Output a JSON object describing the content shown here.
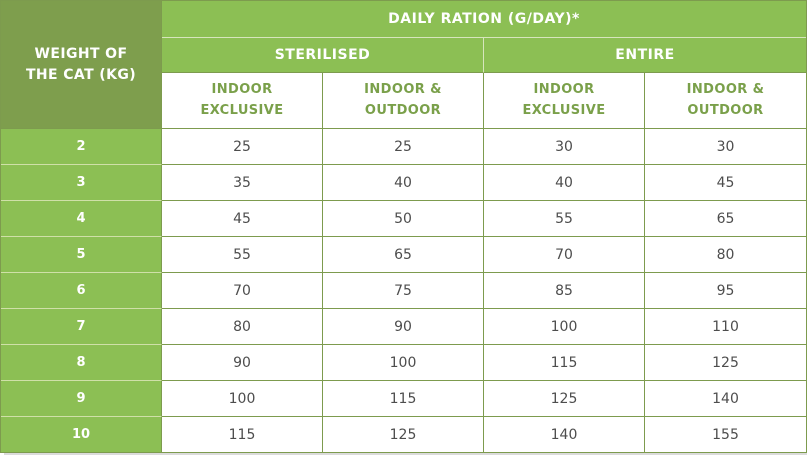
{
  "title": "DAILY RATION (G/DAY)*",
  "corner": [
    "WEIGHT OF",
    "THE CAT (KG)"
  ],
  "groups": [
    "STERILISED",
    "ENTIRE"
  ],
  "sub_headers": [
    [
      "INDOOR",
      "EXCLUSIVE"
    ],
    [
      "INDOOR &",
      "OUTDOOR"
    ],
    [
      "INDOOR",
      "EXCLUSIVE"
    ],
    [
      "INDOOR &",
      "OUTDOOR"
    ]
  ],
  "chart_data": {
    "type": "table",
    "title": "DAILY RATION (G/DAY)*",
    "row_header": "WEIGHT OF THE CAT (KG)",
    "column_groups": [
      "STERILISED",
      "ENTIRE"
    ],
    "columns": [
      "STERILISED - INDOOR EXCLUSIVE",
      "STERILISED - INDOOR & OUTDOOR",
      "ENTIRE - INDOOR EXCLUSIVE",
      "ENTIRE - INDOOR & OUTDOOR"
    ],
    "rows": [
      {
        "weight": 2,
        "values": [
          25,
          25,
          30,
          30
        ]
      },
      {
        "weight": 3,
        "values": [
          35,
          40,
          40,
          45
        ]
      },
      {
        "weight": 4,
        "values": [
          45,
          50,
          55,
          65
        ]
      },
      {
        "weight": 5,
        "values": [
          55,
          65,
          70,
          80
        ]
      },
      {
        "weight": 6,
        "values": [
          70,
          75,
          85,
          95
        ]
      },
      {
        "weight": 7,
        "values": [
          80,
          90,
          100,
          110
        ]
      },
      {
        "weight": 8,
        "values": [
          90,
          100,
          115,
          125
        ]
      },
      {
        "weight": 9,
        "values": [
          100,
          115,
          125,
          140
        ]
      },
      {
        "weight": 10,
        "values": [
          115,
          125,
          140,
          155
        ]
      }
    ]
  },
  "colors": {
    "header_green": "#8cbf54",
    "corner_green": "#7e9e4d",
    "border_olive": "#7d9b4e",
    "light_border": "#d6e5bd",
    "subheader_text": "#7aa04a",
    "data_text": "#4d4d4d",
    "shadow_gray": "#dbdbdb"
  }
}
